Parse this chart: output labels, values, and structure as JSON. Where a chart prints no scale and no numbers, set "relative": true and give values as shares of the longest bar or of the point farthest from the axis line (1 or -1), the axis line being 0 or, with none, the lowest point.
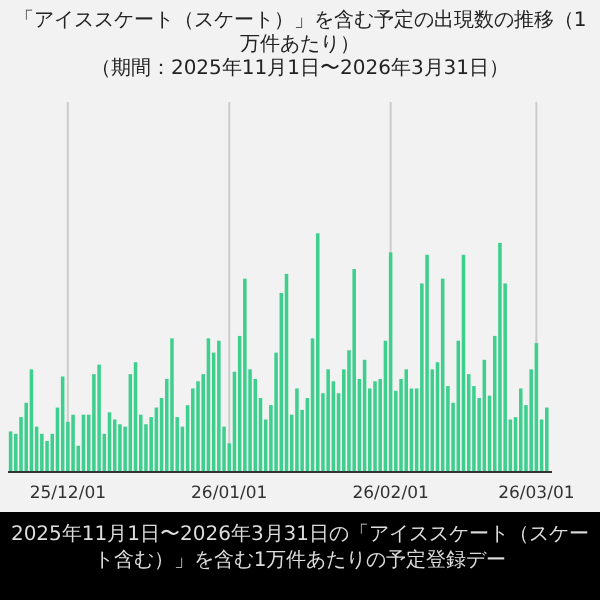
{
  "chart_data": {
    "type": "bar",
    "relative": true,
    "title": "「アイススケート（スケート）」を含む予定の出現数の推移（1万件あたり）",
    "subtitle": "（期間：2025年11月1日〜2026年3月31日）",
    "annotations": [
      "2025年11月1日〜2026年3月31日の「アイススケート（スケート含む）」を含む1万件あたりの予定登録デー"
    ],
    "color": "#3ecf8e",
    "grid": "x",
    "xlim": [
      "2025-11-19T12:00",
      "2026-03-04"
    ],
    "xticks": [
      {
        "value": "2025-12-01",
        "label": "25/12/01"
      },
      {
        "value": "2026-01-01",
        "label": "26/01/01"
      },
      {
        "value": "2026-02-01",
        "label": "26/02/01"
      },
      {
        "value": "2026-03-01",
        "label": "26/03/01"
      }
    ],
    "x": [
      "2025-11-20",
      "2025-11-21",
      "2025-11-22",
      "2025-11-23",
      "2025-11-24",
      "2025-11-25",
      "2025-11-26",
      "2025-11-27",
      "2025-11-28",
      "2025-11-29",
      "2025-11-30",
      "2025-12-01",
      "2025-12-02",
      "2025-12-03",
      "2025-12-04",
      "2025-12-05",
      "2025-12-06",
      "2025-12-07",
      "2025-12-08",
      "2025-12-09",
      "2025-12-10",
      "2025-12-11",
      "2025-12-12",
      "2025-12-13",
      "2025-12-14",
      "2025-12-15",
      "2025-12-16",
      "2025-12-17",
      "2025-12-18",
      "2025-12-19",
      "2025-12-20",
      "2025-12-21",
      "2025-12-22",
      "2025-12-23",
      "2025-12-24",
      "2025-12-25",
      "2025-12-26",
      "2025-12-27",
      "2025-12-28",
      "2025-12-29",
      "2025-12-30",
      "2025-12-31",
      "2026-01-01",
      "2026-01-02",
      "2026-01-03",
      "2026-01-04",
      "2026-01-05",
      "2026-01-06",
      "2026-01-07",
      "2026-01-08",
      "2026-01-09",
      "2026-01-10",
      "2026-01-11",
      "2026-01-12",
      "2026-01-13",
      "2026-01-14",
      "2026-01-15",
      "2026-01-16",
      "2026-01-17",
      "2026-01-18",
      "2026-01-19",
      "2026-01-20",
      "2026-01-21",
      "2026-01-22",
      "2026-01-23",
      "2026-01-24",
      "2026-01-25",
      "2026-01-26",
      "2026-01-27",
      "2026-01-28",
      "2026-01-29",
      "2026-01-30",
      "2026-01-31",
      "2026-02-01",
      "2026-02-02",
      "2026-02-03",
      "2026-02-04",
      "2026-02-05",
      "2026-02-06",
      "2026-02-07",
      "2026-02-08",
      "2026-02-09",
      "2026-02-10",
      "2026-02-11",
      "2026-02-12",
      "2026-02-13",
      "2026-02-14",
      "2026-02-15",
      "2026-02-16",
      "2026-02-17",
      "2026-02-18",
      "2026-02-19",
      "2026-02-20",
      "2026-02-21",
      "2026-02-22",
      "2026-02-23",
      "2026-02-24",
      "2026-02-25",
      "2026-02-26",
      "2026-02-27",
      "2026-02-28",
      "2026-03-01",
      "2026-03-02",
      "2026-03-03"
    ],
    "values": [
      0.17,
      0.16,
      0.23,
      0.29,
      0.43,
      0.19,
      0.16,
      0.13,
      0.16,
      0.27,
      0.4,
      0.21,
      0.24,
      0.11,
      0.24,
      0.24,
      0.41,
      0.45,
      0.16,
      0.25,
      0.22,
      0.2,
      0.19,
      0.41,
      0.46,
      0.24,
      0.2,
      0.23,
      0.27,
      0.31,
      0.39,
      0.56,
      0.23,
      0.19,
      0.28,
      0.35,
      0.38,
      0.41,
      0.56,
      0.5,
      0.55,
      0.19,
      0.12,
      0.42,
      0.57,
      0.81,
      0.43,
      0.39,
      0.31,
      0.22,
      0.28,
      0.5,
      0.75,
      0.83,
      0.24,
      0.35,
      0.26,
      0.31,
      0.56,
      1,
      0.33,
      0.43,
      0.38,
      0.33,
      0.43,
      0.51,
      0.85,
      0.39,
      0.47,
      0.35,
      0.38,
      0.39,
      0.55,
      0.92,
      0.34,
      0.39,
      0.43,
      0.35,
      0.35,
      0.79,
      0.91,
      0.43,
      0.46,
      0.81,
      0.36,
      0.29,
      0.55,
      0.91,
      0.41,
      0.36,
      0.31,
      0.47,
      0.32,
      0.57,
      0.96,
      0.79,
      0.22,
      0.23,
      0.35,
      0.28,
      0.43,
      0.54,
      0.22,
      0.27
    ]
  }
}
